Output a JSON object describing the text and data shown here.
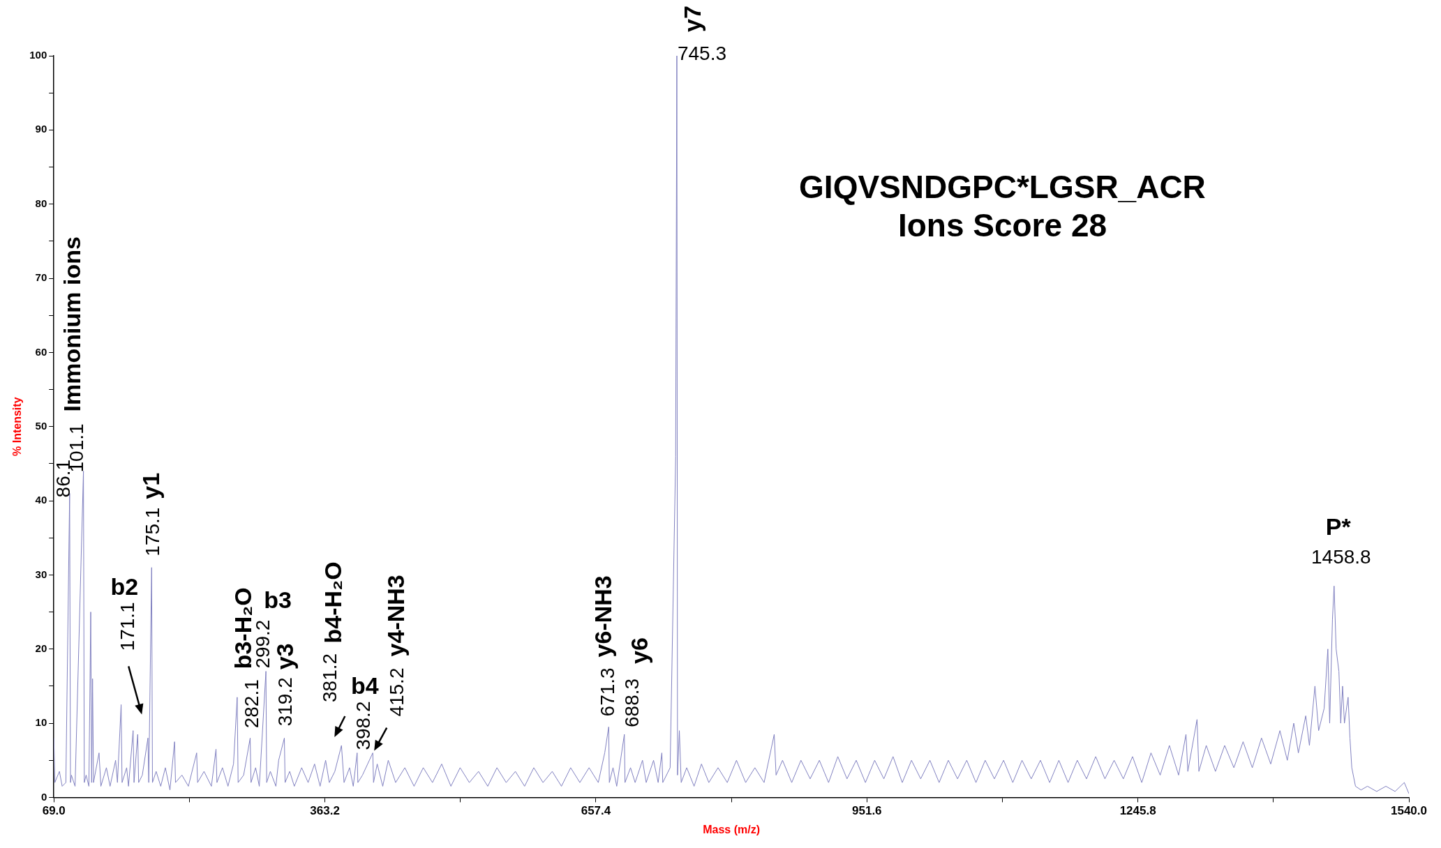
{
  "chart_data": {
    "type": "line",
    "title": "GIQVSNDGPC*LGSR_ACR",
    "subtitle": "Ions Score 28",
    "xlabel": "Mass (m/z)",
    "ylabel": "% Intensity",
    "xlim": [
      69.0,
      1540.0
    ],
    "xticks": [
      {
        "value": 69.0,
        "label": "69.0"
      },
      {
        "value": 216.1,
        "label": null
      },
      {
        "value": 363.2,
        "label": "363.2"
      },
      {
        "value": 510.3,
        "label": null
      },
      {
        "value": 657.4,
        "label": "657.4"
      },
      {
        "value": 804.5,
        "label": null
      },
      {
        "value": 951.6,
        "label": "951.6"
      },
      {
        "value": 1098.7,
        "label": null
      },
      {
        "value": 1245.8,
        "label": "1245.8"
      },
      {
        "value": 1392.9,
        "label": null
      },
      {
        "value": 1540.0,
        "label": "1540.0"
      }
    ],
    "ylim": [
      0,
      100
    ],
    "yticks": [
      0,
      {
        "value": 5,
        "label": null
      },
      10,
      {
        "value": 15,
        "label": null
      },
      20,
      {
        "value": 25,
        "label": null
      },
      30,
      {
        "value": 35,
        "label": null
      },
      40,
      {
        "value": 45,
        "label": null
      },
      50,
      {
        "value": 55,
        "label": null
      },
      60,
      {
        "value": 65,
        "label": null
      },
      70,
      {
        "value": 75,
        "label": null
      },
      80,
      {
        "value": 85,
        "label": null
      },
      90,
      {
        "value": 95,
        "label": null
      },
      100
    ],
    "grid": false,
    "legend": false,
    "marker": "none",
    "line_style": "solid",
    "series": [
      {
        "color": "#8080c0",
        "x": [
          69,
          70,
          75,
          78,
          82,
          86.1,
          87,
          88,
          92,
          101.1,
          102,
          104,
          107,
          109,
          110,
          111,
          112,
          118,
          120,
          126,
          130,
          136,
          138,
          142,
          143,
          148,
          150,
          155,
          156,
          160,
          161,
          165,
          171.1,
          172,
          175.1,
          176,
          180,
          185,
          190,
          195,
          200,
          201,
          208,
          215,
          224,
          225,
          232,
          240,
          245,
          246,
          252,
          258,
          264,
          268,
          269,
          275,
          282.1,
          283,
          288,
          292,
          299.2,
          300,
          304,
          310,
          313,
          319.2,
          320,
          325,
          330,
          338,
          345,
          352,
          358,
          364,
          368,
          374,
          381.2,
          384,
          390,
          394,
          398.2,
          399,
          404,
          415.2,
          416,
          420,
          426,
          432,
          440,
          450,
          460,
          470,
          480,
          490,
          500,
          510,
          520,
          530,
          540,
          550,
          560,
          570,
          580,
          590,
          600,
          610,
          620,
          630,
          640,
          650,
          660,
          667,
          671.3,
          672,
          676,
          680,
          688.3,
          689,
          695,
          700,
          708,
          712,
          720,
          725,
          729,
          730,
          738,
          744,
          745.3,
          746,
          748,
          750,
          756,
          764,
          772,
          780,
          790,
          800,
          810,
          820,
          830,
          840,
          851,
          853,
          860,
          870,
          880,
          890,
          900,
          910,
          920,
          930,
          940,
          950,
          960,
          970,
          980,
          990,
          1000,
          1010,
          1020,
          1030,
          1040,
          1050,
          1060,
          1070,
          1080,
          1090,
          1100,
          1110,
          1120,
          1130,
          1140,
          1150,
          1160,
          1170,
          1180,
          1190,
          1200,
          1210,
          1220,
          1230,
          1240,
          1250,
          1260,
          1270,
          1280,
          1290,
          1298,
          1300,
          1310,
          1312,
          1320,
          1330,
          1340,
          1350,
          1360,
          1370,
          1380,
          1390,
          1400,
          1408,
          1415,
          1420,
          1428,
          1432,
          1438,
          1442,
          1448,
          1452,
          1454,
          1457,
          1458.8,
          1461,
          1464,
          1466,
          1468,
          1470,
          1474,
          1476,
          1478,
          1482,
          1488,
          1495,
          1505,
          1515,
          1525,
          1535,
          1540
        ],
        "values": [
          8,
          2,
          3.5,
          1.5,
          2,
          41,
          2,
          3,
          1.5,
          44,
          2,
          3,
          1.5,
          25,
          2,
          16,
          2,
          6,
          1.5,
          4,
          1.5,
          5,
          2,
          12.5,
          2,
          4,
          1.5,
          9,
          2,
          8.5,
          2,
          3,
          8,
          2,
          31,
          2,
          3.5,
          1.5,
          4,
          1,
          7.5,
          2,
          3,
          1.5,
          6,
          2,
          3.5,
          1.5,
          6.5,
          2,
          4,
          1.5,
          4.5,
          13.5,
          2,
          3,
          8,
          2,
          4,
          1.5,
          17,
          2,
          3.5,
          1.5,
          5,
          8,
          2,
          3.5,
          1.5,
          4,
          2,
          4.5,
          1.5,
          5,
          2,
          3.5,
          7,
          2,
          4,
          1.5,
          6,
          2,
          3,
          6,
          2,
          4.5,
          1.5,
          5,
          2,
          4,
          1.5,
          4,
          2,
          4.5,
          1.5,
          4,
          2,
          3.5,
          1.5,
          4,
          2,
          3.5,
          1.5,
          4,
          2,
          3.5,
          1.5,
          4,
          2,
          4,
          2,
          6,
          9.5,
          2,
          4,
          1.5,
          8.5,
          2,
          4,
          2,
          5,
          2,
          5,
          2,
          6,
          2,
          4,
          46,
          100,
          3,
          9,
          2,
          4,
          1.5,
          4.5,
          2,
          4,
          2,
          5,
          2,
          4,
          2,
          8.5,
          3,
          5,
          2,
          5,
          2.5,
          5,
          2,
          5.5,
          2.5,
          5,
          2,
          5,
          2.5,
          5.5,
          2,
          5,
          2.5,
          5,
          2,
          5,
          2.5,
          5,
          2,
          5,
          2.5,
          5,
          2,
          5,
          2.5,
          5,
          2,
          5,
          2,
          5,
          2.5,
          5.5,
          2.5,
          5,
          2.5,
          5.5,
          2,
          6,
          3,
          7,
          3,
          8.5,
          3.5,
          10.5,
          3.5,
          7,
          3.5,
          7,
          4,
          7.5,
          4,
          8,
          4.5,
          9,
          5,
          10,
          6,
          11,
          7,
          15,
          9,
          12,
          20,
          10,
          24,
          28.5,
          20,
          17,
          10,
          15,
          10,
          13.5,
          8,
          4,
          1.5,
          1,
          1.5,
          0.8,
          1.5,
          0.8,
          2,
          0.5
        ]
      }
    ],
    "annotations": [
      "Immonium ions",
      {
        "text": "86.1",
        "x": 86.1,
        "y": 41
      },
      {
        "text": "101.1",
        "x": 101.1,
        "y": 44
      },
      {
        "text": "y1",
        "x": 175.1,
        "y": 31
      },
      {
        "text": "175.1",
        "x": 175.1,
        "y": 31
      },
      "b2",
      "171.1",
      {
        "text": "b3-H₂O",
        "x": 282.1,
        "y": 8
      },
      {
        "text": "282.1",
        "x": 282.1,
        "y": 8
      },
      {
        "text": "299.2",
        "x": 299.2,
        "y": 17
      },
      {
        "text": "b3",
        "x": 299.2,
        "y": 17
      },
      {
        "text": "y3",
        "x": 319.2,
        "y": 8
      },
      {
        "text": "319.2",
        "x": 319.2,
        "y": 8
      },
      {
        "text": "381.2",
        "x": 381.2,
        "y": 7
      },
      "b4-H₂O",
      {
        "text": "b4",
        "x": 398.2,
        "y": 6
      },
      {
        "text": "398.2",
        "x": 398.2,
        "y": 6
      },
      {
        "text": "415.2",
        "x": 415.2,
        "y": 6
      },
      "y4-NH3",
      {
        "text": "y6-NH3",
        "x": 671.3,
        "y": 9.5
      },
      {
        "text": "671.3",
        "x": 671.3,
        "y": 9.5
      },
      {
        "text": "688.3",
        "x": 688.3,
        "y": 8.5
      },
      {
        "text": "y6",
        "x": 688.3,
        "y": 8.5
      },
      {
        "text": "y7",
        "x": 745.3,
        "y": 100
      },
      {
        "text": "745.3",
        "x": 745.3,
        "y": 100
      },
      {
        "text": "P*",
        "x": 1458.8,
        "y": 28.5
      },
      {
        "text": "1458.8",
        "x": 1458.8,
        "y": 28.5
      }
    ]
  }
}
